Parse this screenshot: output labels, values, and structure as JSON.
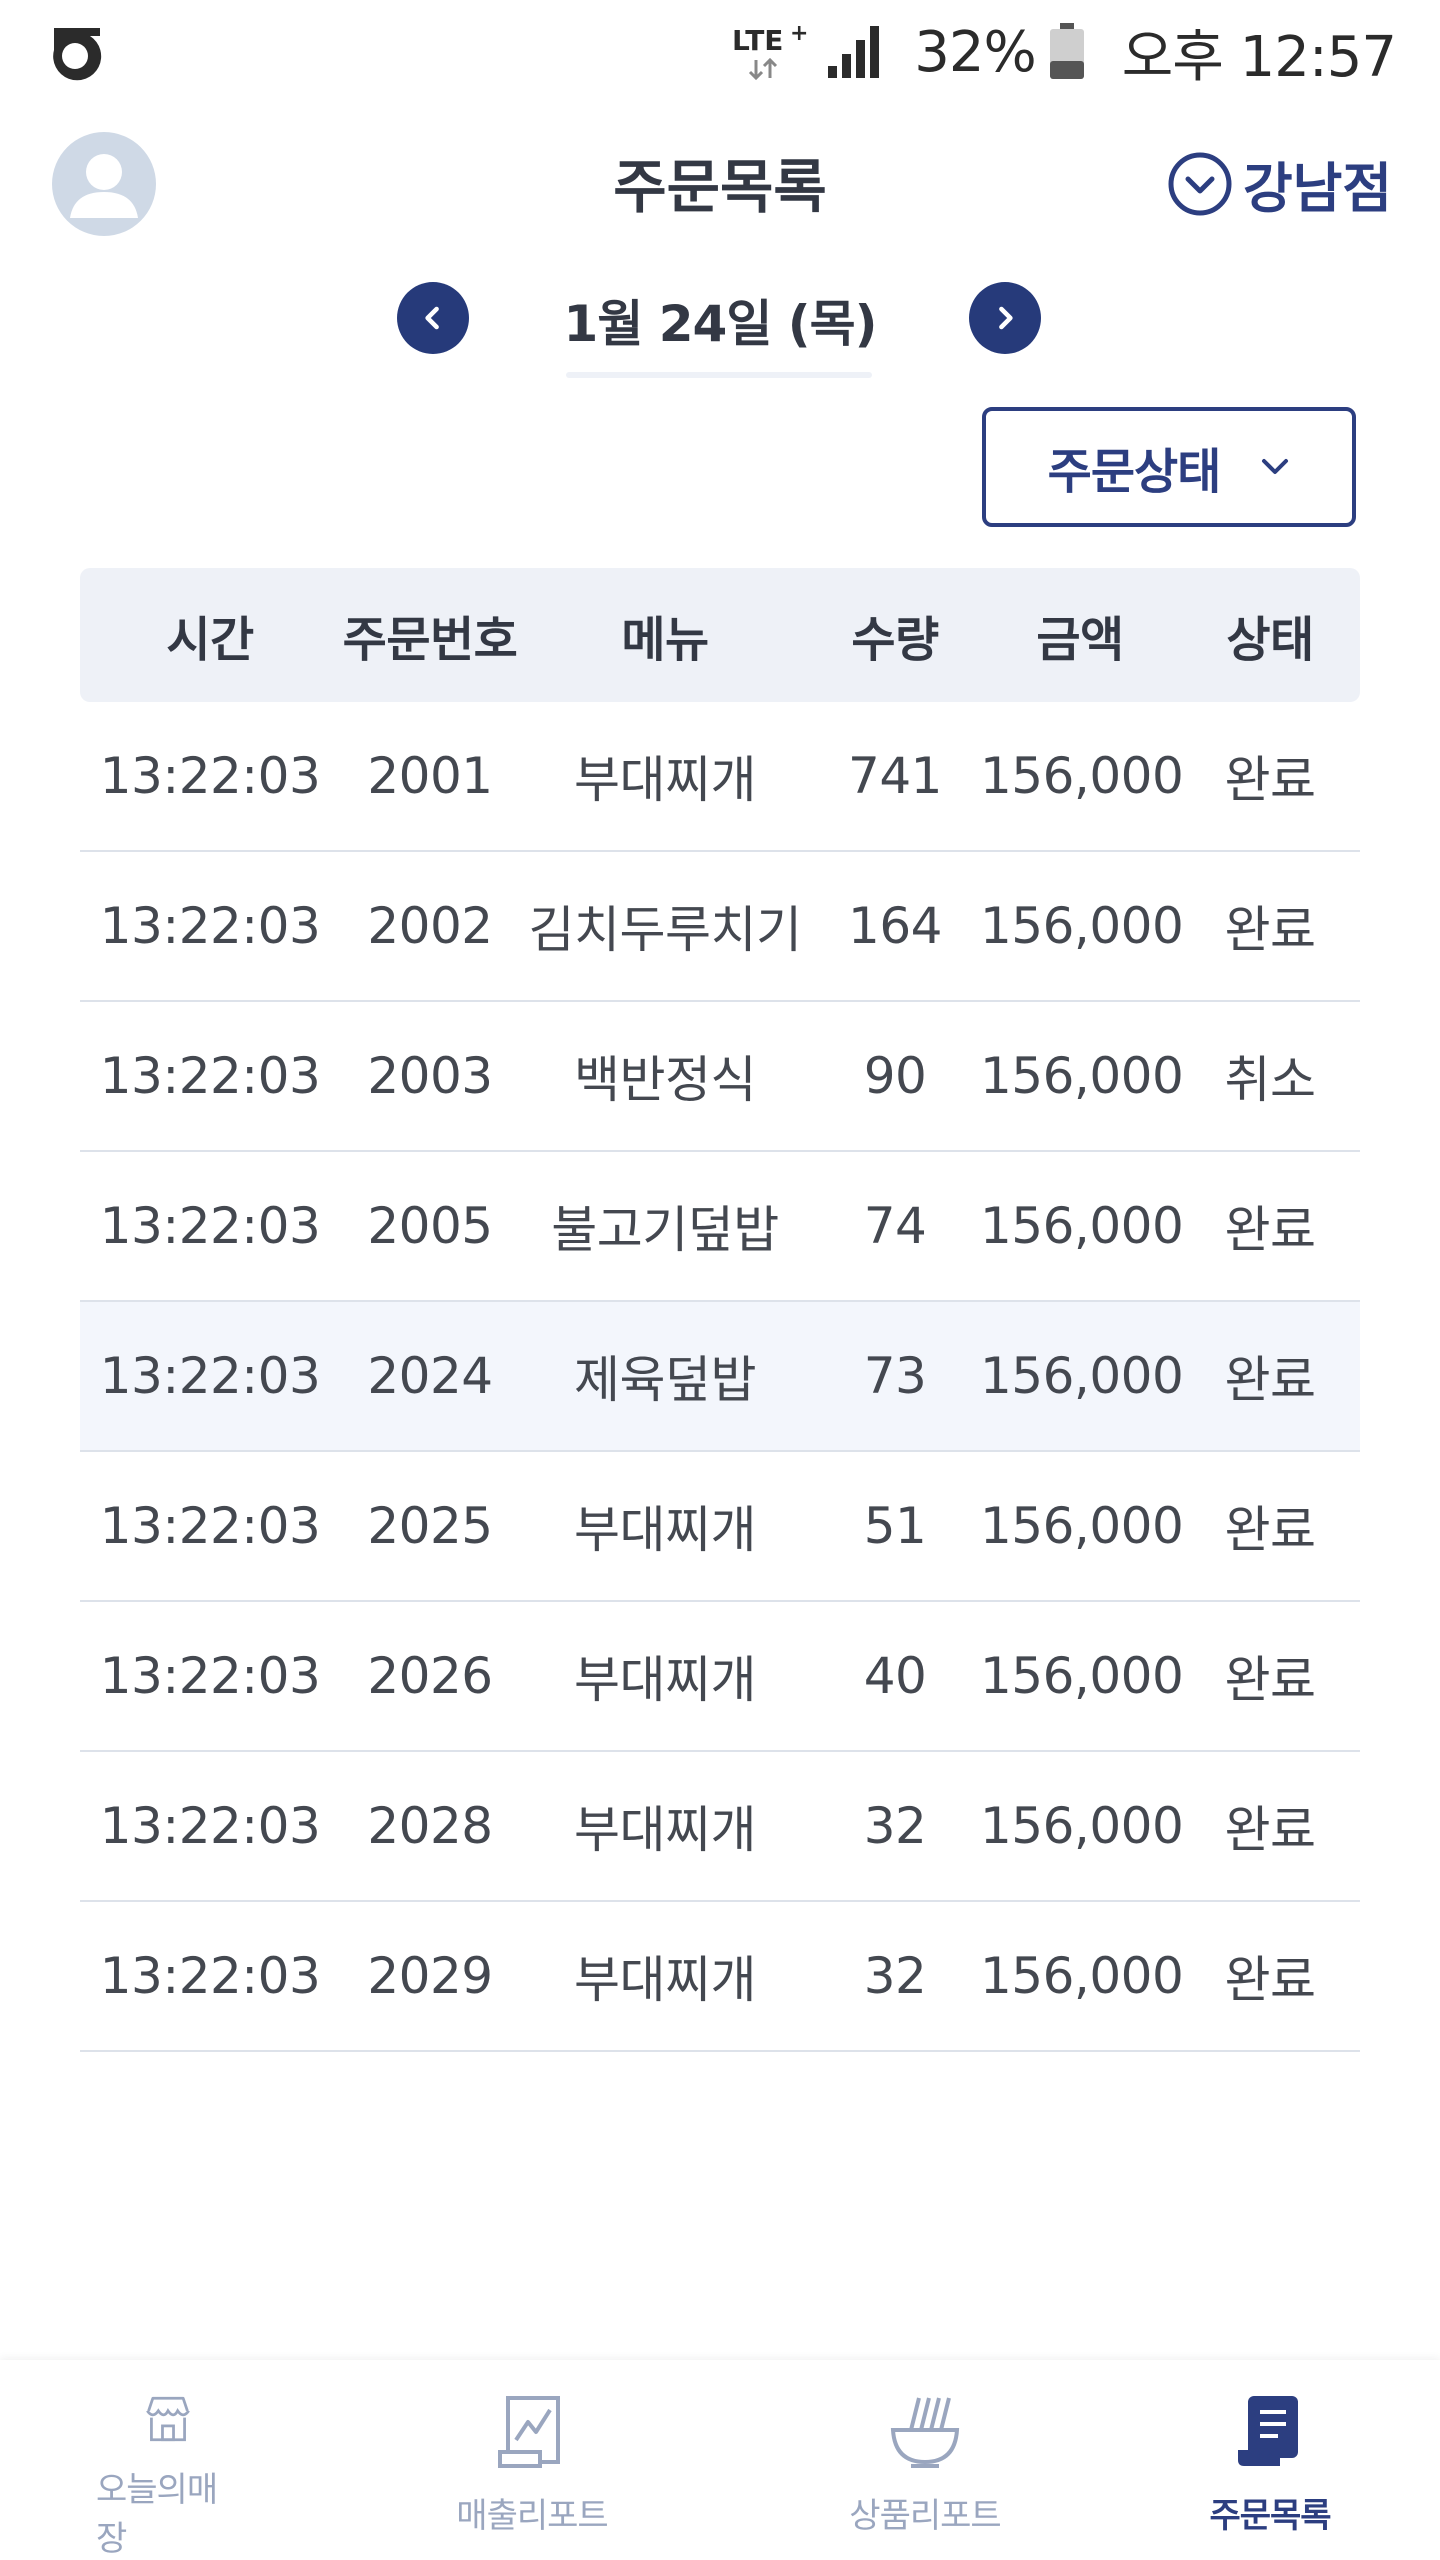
{
  "status_bar": {
    "network": "LTE+",
    "battery": "32%",
    "clock": "오후 12:57"
  },
  "header": {
    "title": "주문목록",
    "store": "강남점"
  },
  "date_nav": {
    "date": "1월 24일 (목)"
  },
  "filter": {
    "label": "주문상태"
  },
  "table": {
    "columns": [
      "시간",
      "주문번호",
      "메뉴",
      "수량",
      "금액",
      "상태"
    ],
    "rows": [
      {
        "time": "13:22:03",
        "no": "2001",
        "menu": "부대찌개",
        "qty": "741",
        "amount": "156,000",
        "status": "완료"
      },
      {
        "time": "13:22:03",
        "no": "2002",
        "menu": "김치두루치기",
        "qty": "164",
        "amount": "156,000",
        "status": "완료"
      },
      {
        "time": "13:22:03",
        "no": "2003",
        "menu": "백반정식",
        "qty": "90",
        "amount": "156,000",
        "status": "취소"
      },
      {
        "time": "13:22:03",
        "no": "2005",
        "menu": "불고기덮밥",
        "qty": "74",
        "amount": "156,000",
        "status": "완료"
      },
      {
        "time": "13:22:03",
        "no": "2024",
        "menu": "제육덮밥",
        "qty": "73",
        "amount": "156,000",
        "status": "완료"
      },
      {
        "time": "13:22:03",
        "no": "2025",
        "menu": "부대찌개",
        "qty": "51",
        "amount": "156,000",
        "status": "완료"
      },
      {
        "time": "13:22:03",
        "no": "2026",
        "menu": "부대찌개",
        "qty": "40",
        "amount": "156,000",
        "status": "완료"
      },
      {
        "time": "13:22:03",
        "no": "2028",
        "menu": "부대찌개",
        "qty": "32",
        "amount": "156,000",
        "status": "완료"
      },
      {
        "time": "13:22:03",
        "no": "2029",
        "menu": "부대찌개",
        "qty": "32",
        "amount": "156,000",
        "status": "완료"
      }
    ]
  },
  "bottom_nav": {
    "items": [
      {
        "label": "오늘의매장",
        "icon": "store-icon"
      },
      {
        "label": "매출리포트",
        "icon": "chart-report-icon"
      },
      {
        "label": "상품리포트",
        "icon": "noodle-bowl-icon"
      },
      {
        "label": "주문목록",
        "icon": "order-list-icon"
      }
    ],
    "active_index": 3
  },
  "colors": {
    "brand": "#2c3e80",
    "header_bg": "#eef1f7",
    "highlight_row": "#f3f6fc",
    "inactive_nav": "#9aa6bf"
  }
}
